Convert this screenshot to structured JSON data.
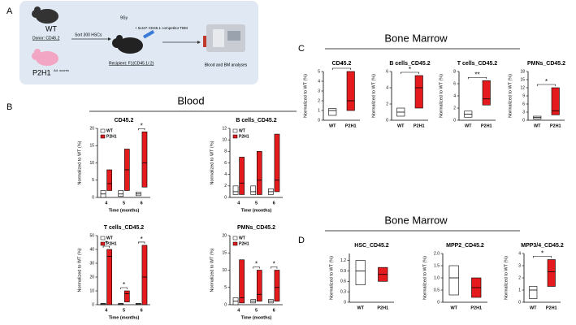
{
  "panels": {
    "a": "A",
    "b": "B",
    "c": "C",
    "d": "D"
  },
  "sections": {
    "blood": "Blood",
    "bone_marrow_top": "Bone Marrow",
    "bone_marrow_bottom": "Bone Marrow"
  },
  "schematic": {
    "wt": "WT",
    "donor": "Donor: CD45.2",
    "sort": "Sort 300 HSCs",
    "dose": "9Gy",
    "competitor": "+ 5x10⁵ CD45.1 competitor TBM",
    "recipient": "Recipient: F1(CD45.1/.2)",
    "p2h1": "P2H1",
    "p2h1_sup": "Ad. scores",
    "analysis": "Blood and BM analyses"
  },
  "chart_data": [
    {
      "type": "box",
      "title": "CD45.2",
      "x_label": "Time (months)",
      "y_label": "Normalized to WT (%)",
      "legend": true,
      "categories": [
        "4",
        "5",
        "6"
      ],
      "ylim": [
        0,
        20
      ],
      "yticks": [
        0,
        5,
        10,
        15,
        20
      ],
      "series": [
        {
          "name": "WT",
          "color": "#ffffff",
          "low": [
            0,
            0.3,
            0.5
          ],
          "median": [
            1,
            1,
            1
          ],
          "high": [
            2,
            2,
            1.5
          ]
        },
        {
          "name": "P2H1",
          "color": "#e41a1c",
          "low": [
            2,
            2,
            3
          ],
          "median": [
            4,
            8,
            10
          ],
          "high": [
            8,
            14,
            19
          ]
        }
      ],
      "significance": [
        null,
        null,
        "*"
      ]
    },
    {
      "type": "box",
      "title": "B cells_CD45.2",
      "x_label": "Time (months)",
      "y_label": "Normalized to WT (%)",
      "legend": true,
      "categories": [
        "4",
        "5",
        "6"
      ],
      "ylim": [
        0,
        12
      ],
      "yticks": [
        0,
        2,
        4,
        6,
        8,
        10,
        12
      ],
      "series": [
        {
          "name": "WT",
          "color": "#ffffff",
          "low": [
            0.5,
            0.5,
            0.5
          ],
          "median": [
            1,
            1,
            1
          ],
          "high": [
            2,
            2,
            1.5
          ]
        },
        {
          "name": "P2H1",
          "color": "#e41a1c",
          "low": [
            0.5,
            0.5,
            1
          ],
          "median": [
            2.5,
            3,
            3
          ],
          "high": [
            7,
            8,
            11
          ]
        }
      ]
    },
    {
      "type": "box",
      "title": "T cells_CD45.2",
      "x_label": "Time (months)",
      "y_label": "Normalized to WT (%)",
      "legend": true,
      "categories": [
        "4",
        "5",
        "6"
      ],
      "ylim": [
        0,
        50
      ],
      "yticks": [
        0,
        10,
        20,
        30,
        40,
        50
      ],
      "series": [
        {
          "name": "WT",
          "color": "#ffffff",
          "low": [
            0,
            0,
            0
          ],
          "median": [
            0.5,
            0.5,
            0.5
          ],
          "high": [
            1,
            1,
            1
          ]
        },
        {
          "name": "P2H1",
          "color": "#e41a1c",
          "low": [
            0,
            2,
            0
          ],
          "median": [
            35,
            8,
            20
          ],
          "high": [
            40,
            10,
            43
          ]
        }
      ],
      "significance": [
        "*",
        "*",
        "*"
      ]
    },
    {
      "type": "box",
      "title": "PMNs_CD45.2",
      "x_label": "Time (months)",
      "y_label": "Normalized to WT (%)",
      "legend": true,
      "categories": [
        "4",
        "5",
        "6"
      ],
      "ylim": [
        0,
        20
      ],
      "yticks": [
        0,
        5,
        10,
        15,
        20
      ],
      "series": [
        {
          "name": "WT",
          "color": "#ffffff",
          "low": [
            0,
            0.5,
            0.5
          ],
          "median": [
            1,
            1,
            1
          ],
          "high": [
            2,
            1.5,
            1.5
          ]
        },
        {
          "name": "P2H1",
          "color": "#e41a1c",
          "low": [
            0.5,
            1,
            1
          ],
          "median": [
            2,
            3,
            5
          ],
          "high": [
            13,
            10,
            10
          ]
        }
      ],
      "significance": [
        null,
        "*",
        "*"
      ]
    },
    {
      "type": "box",
      "title": "CD45.2",
      "y_label": "Normalized to WT (%)",
      "categories": [
        "WT",
        "P2H1"
      ],
      "colors": [
        "#ffffff",
        "#e41a1c"
      ],
      "ylim": [
        0,
        5
      ],
      "yticks": [
        0,
        1,
        2,
        3,
        4,
        5
      ],
      "low": [
        0.5,
        1
      ],
      "median": [
        1,
        2
      ],
      "high": [
        1.2,
        5
      ],
      "significance": "*"
    },
    {
      "type": "box",
      "title": "B cells_CD45.2",
      "y_label": "Normalized to WT (%)",
      "categories": [
        "WT",
        "P2H1"
      ],
      "colors": [
        "#ffffff",
        "#e41a1c"
      ],
      "ylim": [
        0,
        6
      ],
      "yticks": [
        0,
        2,
        4,
        6
      ],
      "low": [
        0.5,
        1.5
      ],
      "median": [
        1,
        4
      ],
      "high": [
        1.5,
        5.5
      ],
      "significance": "*"
    },
    {
      "type": "box",
      "title": "T cells_CD45.2",
      "y_label": "Normalized to WT (%)",
      "categories": [
        "WT",
        "P2H1"
      ],
      "colors": [
        "#ffffff",
        "#e41a1c"
      ],
      "ylim": [
        0,
        8
      ],
      "yticks": [
        0,
        2,
        4,
        6,
        8
      ],
      "low": [
        0.5,
        2.5
      ],
      "median": [
        1,
        3.5
      ],
      "high": [
        1.5,
        6.5
      ],
      "significance": "**"
    },
    {
      "type": "box",
      "title": "PMNs_CD45.2",
      "y_label": "Normalized to WT (%)",
      "categories": [
        "WT",
        "P2H1"
      ],
      "colors": [
        "#ffffff",
        "#e41a1c"
      ],
      "ylim": [
        0,
        18
      ],
      "yticks": [
        0,
        3,
        6,
        9,
        12,
        15,
        18
      ],
      "low": [
        0.5,
        2
      ],
      "median": [
        1,
        3.5
      ],
      "high": [
        1.5,
        12
      ],
      "significance": "*"
    },
    {
      "type": "box",
      "title": "HSC_CD45.2",
      "y_label": "Normalized to WT (%)",
      "categories": [
        "WT",
        "P2H1"
      ],
      "colors": [
        "#ffffff",
        "#e41a1c"
      ],
      "ylim": [
        0,
        1.4
      ],
      "yticks": [
        0,
        0.3,
        0.6,
        0.9,
        1.2
      ],
      "low": [
        0.5,
        0.6
      ],
      "median": [
        0.9,
        0.8
      ],
      "high": [
        1.2,
        1.0
      ]
    },
    {
      "type": "box",
      "title": "MPP2_CD45.2",
      "y_label": "Normalized to WT (%)",
      "categories": [
        "WT",
        "P2H1"
      ],
      "colors": [
        "#ffffff",
        "#e41a1c"
      ],
      "ylim": [
        0,
        2
      ],
      "yticks": [
        0,
        0.5,
        {
          "value": 1,
          "label": "1.0"
        },
        1.5,
        {
          "value": 2,
          "label": "2.0"
        }
      ],
      "low": [
        0.3,
        0.2
      ],
      "median": [
        1,
        0.6
      ],
      "high": [
        1.5,
        1.0
      ]
    },
    {
      "type": "box",
      "title": "MPP3/4_CD45.2",
      "y_label": "Normalized to WT (%)",
      "categories": [
        "WT",
        "P2H1"
      ],
      "colors": [
        "#ffffff",
        "#e41a1c"
      ],
      "ylim": [
        0,
        4
      ],
      "yticks": [
        0,
        1,
        2,
        3,
        4
      ],
      "low": [
        0.3,
        1.3
      ],
      "median": [
        1,
        2.5
      ],
      "high": [
        1.3,
        3.5
      ],
      "significance": "*"
    }
  ]
}
